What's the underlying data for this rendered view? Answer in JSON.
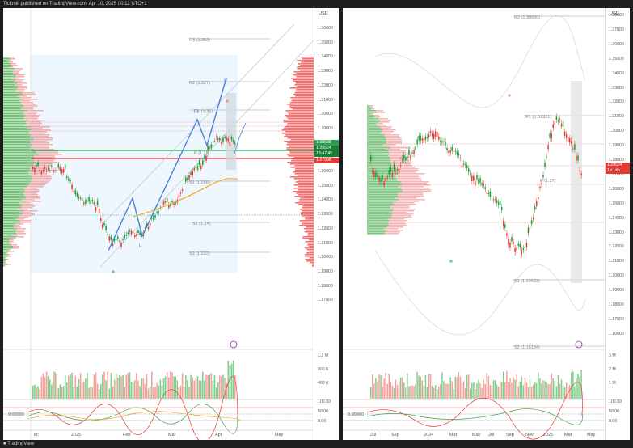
{
  "header": {
    "publisher": "Tickmill published on TradingView.com, Apr 10, 2025 00:12 UTC+1"
  },
  "footer": {
    "brand": "TradingView"
  },
  "left": {
    "currency": "USD",
    "price_ticks": [
      "1.36000",
      "1.35000",
      "1.34000",
      "1.33000",
      "1.32000",
      "1.31000",
      "1.30000",
      "1.29000",
      "1.28000",
      "1.27000",
      "1.26000",
      "1.25000",
      "1.24000",
      "1.23000",
      "1.22000",
      "1.21000",
      "1.20000",
      "1.19000",
      "1.18000",
      "1.17000"
    ],
    "price_tags": [
      {
        "text": "1.28538",
        "color": "#2e9e4f"
      },
      {
        "text": "1.28524",
        "color": "#1b7f3a"
      },
      {
        "text": "13:47:45",
        "color": "#1b7f3a"
      },
      {
        "text": "1.27998",
        "color": "#e53935"
      }
    ],
    "pivots": {
      "r3": "R3 (1.353)",
      "r2": "R2 (1.327)",
      "r1": "R1 (1.31)",
      "p": "P (1.28)",
      "s1": "S1 (1.266)",
      "s2": "S2 (1.24)",
      "s3": "S3 (1.222)"
    },
    "wave_labels": {
      "v": "V",
      "iii": "III",
      "iv": "IV",
      "i": "I",
      "ii": "II"
    },
    "volume_ticks": [
      "1.2 M",
      "800 K",
      "400 K"
    ],
    "osc_ticks": [
      "100.00",
      "50.00",
      "0.00"
    ],
    "osc_value": "0.00000",
    "x_labels": [
      "ec",
      "2025",
      "Feb",
      "Mar",
      "Apr",
      "May"
    ]
  },
  "right": {
    "currency": "USD",
    "price_ticks": [
      "1.38000",
      "1.37000",
      "1.36000",
      "1.35000",
      "1.34000",
      "1.33000",
      "1.32000",
      "1.31000",
      "1.30000",
      "1.29000",
      "1.28000",
      "1.27000",
      "1.26000",
      "1.25000",
      "1.24000",
      "1.23000",
      "1.22000",
      "1.21000",
      "1.20000",
      "1.19000",
      "1.18000",
      "1.17000",
      "1.16000"
    ],
    "price_tags": [
      {
        "text": "1.28524",
        "color": "#e53935"
      },
      {
        "text": "1d 14h",
        "color": "#e53935"
      }
    ],
    "pivots": {
      "r2": "R2 (1.38830)",
      "r1": "R1 (1.31931)",
      "p": "P (1.27)",
      "s1": "S1 (1.20623)",
      "s2": "S2 (1.16134)"
    },
    "volume_ticks": [
      "3 M",
      "2 M",
      "1 M"
    ],
    "osc_ticks": [
      "100.00",
      "50.00",
      "0.00"
    ],
    "osc_value": "0.00000",
    "x_labels": [
      "Jul",
      "Sep",
      "2024",
      "Mar",
      "May",
      "Jul",
      "Sep",
      "Nov",
      "2025",
      "Mar",
      "May"
    ]
  }
}
